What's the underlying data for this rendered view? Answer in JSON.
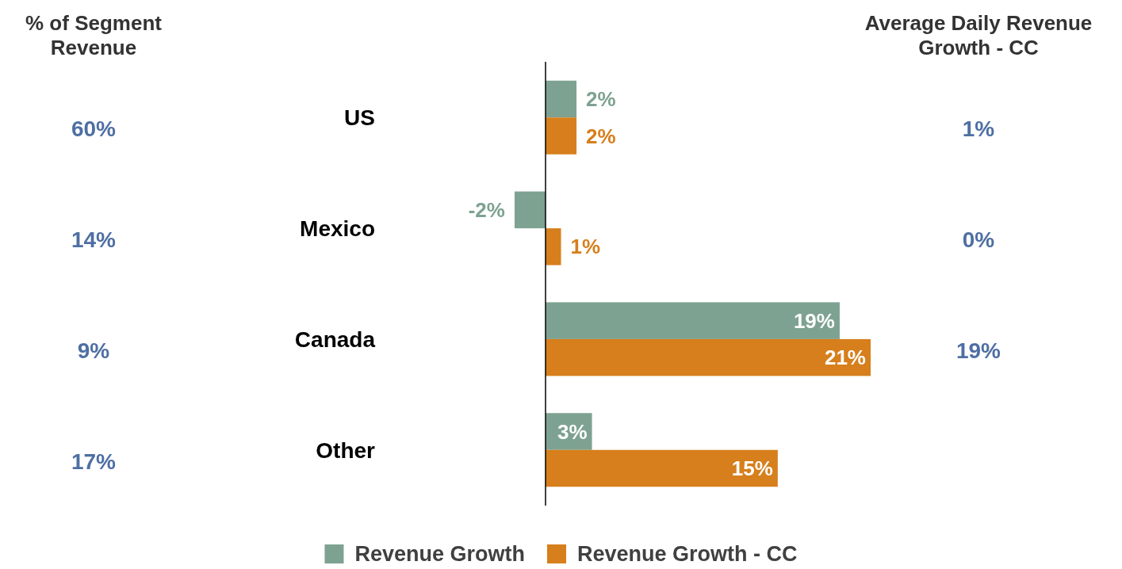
{
  "chart_data": {
    "type": "bar",
    "orientation": "horizontal",
    "categories": [
      "US",
      "Mexico",
      "Canada",
      "Other"
    ],
    "series": [
      {
        "name": "Revenue Growth",
        "color": "#7ea291",
        "values": [
          2,
          -2,
          19,
          3
        ],
        "value_labels": [
          "2%",
          "-2%",
          "19%",
          "3%"
        ]
      },
      {
        "name": "Revenue Growth - CC",
        "color": "#d67f1c",
        "values": [
          2,
          1,
          21,
          15
        ],
        "value_labels": [
          "2%",
          "1%",
          "21%",
          "15%"
        ]
      }
    ],
    "tick_labels": "y",
    "legend": "bottom",
    "annotations": [
      "% of Segment Revenue",
      "60%",
      "14%",
      "9%",
      "17%",
      "Average Daily Revenue Growth - CC",
      "1%",
      "0%",
      "19%"
    ]
  }
}
